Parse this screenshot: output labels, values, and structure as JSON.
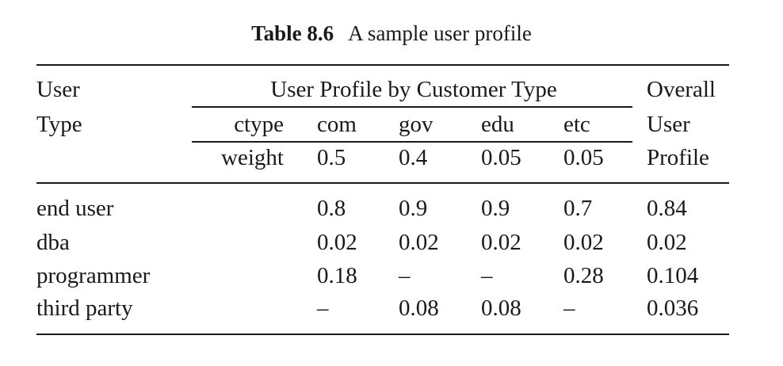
{
  "table": {
    "caption_number": "Table 8.6",
    "caption_text": "A sample user profile",
    "header": {
      "user_type_line1": "User",
      "user_type_line2": "Type",
      "group_title": "User Profile by Customer Type",
      "ctype_label": "ctype",
      "weight_label": "weight",
      "customer_types": [
        "com",
        "gov",
        "edu",
        "etc"
      ],
      "weights": [
        "0.5",
        "0.4",
        "0.05",
        "0.05"
      ],
      "overall_line1": "Overall",
      "overall_line2": "User",
      "overall_line3": "Profile"
    },
    "rows": [
      {
        "user_type": "end user",
        "values": [
          "0.8",
          "0.9",
          "0.9",
          "0.7"
        ],
        "overall": "0.84"
      },
      {
        "user_type": "dba",
        "values": [
          "0.02",
          "0.02",
          "0.02",
          "0.02"
        ],
        "overall": "0.02"
      },
      {
        "user_type": "programmer",
        "values": [
          "0.18",
          "–",
          "–",
          "0.28"
        ],
        "overall": "0.104"
      },
      {
        "user_type": "third party",
        "values": [
          "–",
          "0.08",
          "0.08",
          "–"
        ],
        "overall": "0.036"
      }
    ]
  }
}
